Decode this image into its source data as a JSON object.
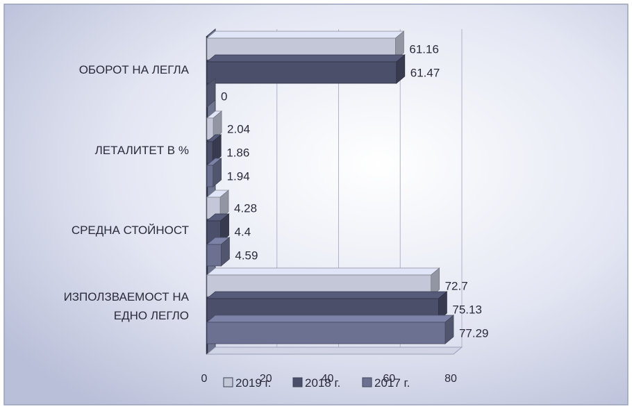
{
  "chart_data": {
    "type": "bar",
    "orientation": "horizontal",
    "style": "3d",
    "categories": [
      "ОБОРОТ НА ЛЕГЛА",
      "ЛЕТАЛИТЕТ В %",
      "СРЕДНА СТОЙНОСТ",
      "ИЗПОЛЗВАЕМОСТ НА ЕДНО ЛЕГЛО"
    ],
    "series": [
      {
        "name": "2019 г.",
        "values": [
          61.16,
          2.04,
          4.28,
          72.7
        ],
        "labels": [
          "61.16",
          "2.04",
          "4.28",
          "72.7"
        ]
      },
      {
        "name": "2018 г.",
        "values": [
          61.47,
          1.86,
          4.4,
          75.13
        ],
        "labels": [
          "61.47",
          "1.86",
          "4.4",
          "75.13"
        ]
      },
      {
        "name": "2017 г.",
        "values": [
          0,
          1.94,
          4.59,
          77.29
        ],
        "labels": [
          "0",
          "1.94",
          "4.59",
          "77.29"
        ]
      }
    ],
    "x_ticks": [
      "0",
      "20",
      "40",
      "60",
      "80"
    ],
    "xlim": [
      0,
      80
    ],
    "grid": true,
    "legend_position": "bottom",
    "colors": [
      "#c3c7d8",
      "#4b4f6a",
      "#6c7192"
    ]
  }
}
